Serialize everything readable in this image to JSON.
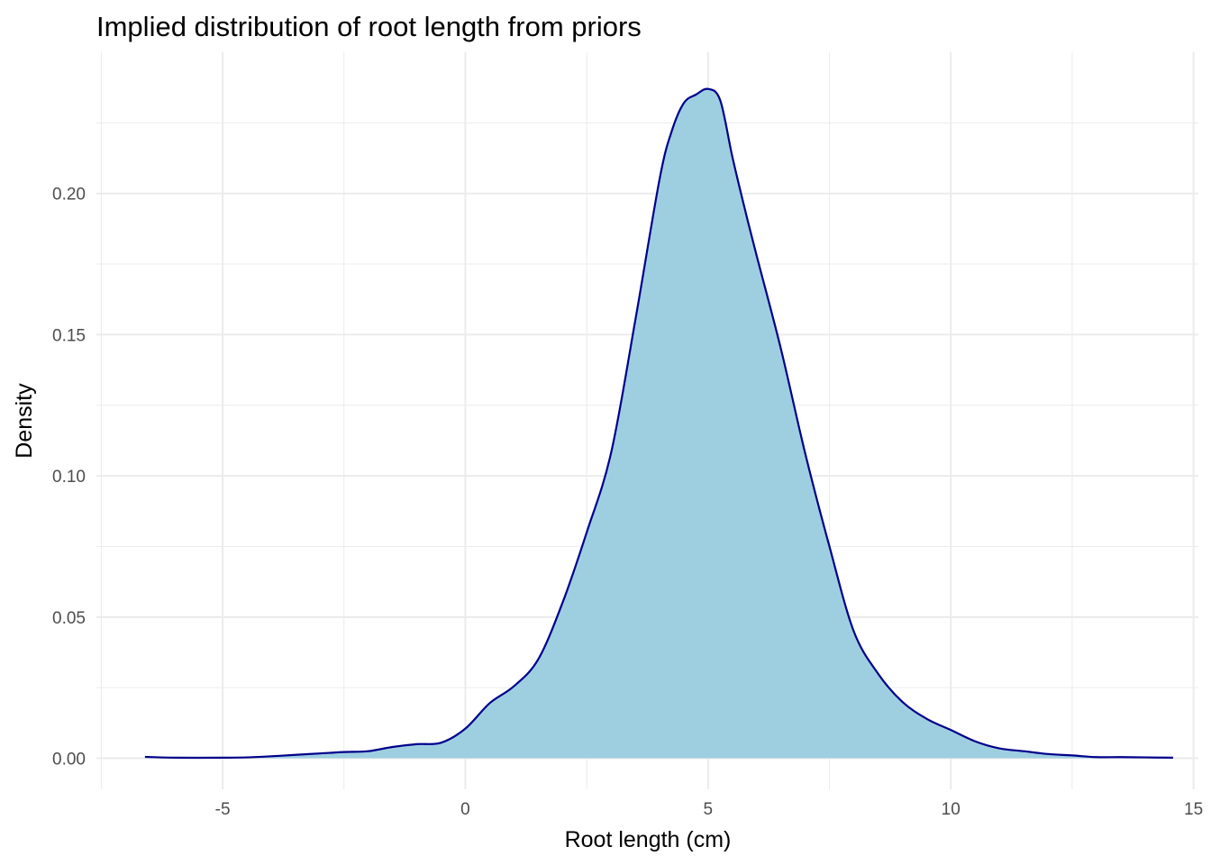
{
  "chart_data": {
    "type": "area",
    "title": "Implied distribution of root length from priors",
    "xlabel": "Root length (cm)",
    "ylabel": "Density",
    "xlim": [
      -7.6,
      15.1
    ],
    "ylim": [
      -0.011,
      0.25
    ],
    "x_ticks": [
      -5,
      0,
      5,
      10,
      15
    ],
    "x_tick_labels": [
      "-5",
      "0",
      "5",
      "10",
      "15"
    ],
    "y_ticks": [
      0.0,
      0.05,
      0.1,
      0.15,
      0.2
    ],
    "y_tick_labels": [
      "0.00",
      "0.05",
      "0.10",
      "0.15",
      "0.20"
    ],
    "grid": true,
    "fill_color": "#9ecfe1",
    "line_color": "#00008b",
    "series": [
      {
        "x": [
          -6.6,
          -6.0,
          -5.0,
          -4.5,
          -4.0,
          -3.5,
          -3.0,
          -2.5,
          -2.0,
          -1.5,
          -1.0,
          -0.5,
          0.0,
          0.5,
          1.0,
          1.5,
          2.0,
          2.5,
          3.0,
          3.5,
          4.0,
          4.25,
          4.5,
          4.75,
          5.0,
          5.25,
          5.5,
          5.75,
          6.0,
          6.5,
          7.0,
          7.5,
          8.0,
          8.5,
          9.0,
          9.5,
          10.0,
          10.5,
          11.0,
          11.5,
          12.0,
          12.5,
          13.0,
          13.5,
          14.0,
          14.58
        ],
        "y": [
          0.0005,
          0.0002,
          0.0002,
          0.0003,
          0.0007,
          0.0012,
          0.0017,
          0.0022,
          0.0025,
          0.004,
          0.005,
          0.0055,
          0.0105,
          0.0195,
          0.0255,
          0.035,
          0.055,
          0.08,
          0.108,
          0.155,
          0.205,
          0.222,
          0.232,
          0.235,
          0.237,
          0.233,
          0.213,
          0.195,
          0.178,
          0.145,
          0.108,
          0.075,
          0.045,
          0.03,
          0.02,
          0.014,
          0.01,
          0.006,
          0.0035,
          0.0025,
          0.0015,
          0.001,
          0.0004,
          0.0004,
          0.0003,
          0.0002
        ]
      }
    ]
  }
}
